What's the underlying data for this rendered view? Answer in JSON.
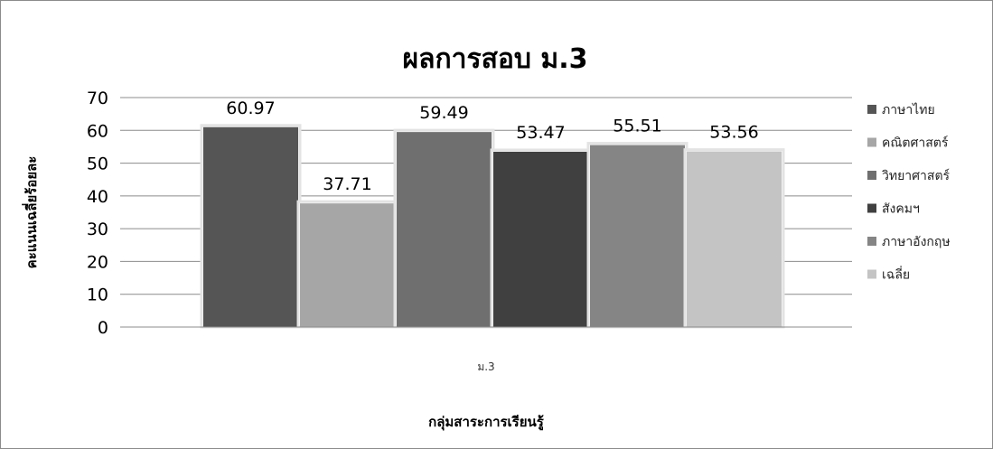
{
  "chart_data": {
    "type": "bar",
    "title": "ผลการสอบ ม.3",
    "xlabel": "กลุ่มสาระการเรียนรู้",
    "ylabel": "คะแนนเฉลี่ยร้อยละ",
    "categories": [
      "ม.3"
    ],
    "ylim": [
      0,
      70
    ],
    "yticks": [
      0,
      10,
      20,
      30,
      40,
      50,
      60,
      70
    ],
    "grid": true,
    "legend_position": "right",
    "series": [
      {
        "name": "ภาษาไทย",
        "values": [
          60.97
        ],
        "label": "60.97",
        "color": "#555555"
      },
      {
        "name": "คณิตศาสตร์",
        "values": [
          37.71
        ],
        "label": "37.71",
        "color": "#a6a6a6"
      },
      {
        "name": "วิทยาศาสตร์",
        "values": [
          59.49
        ],
        "label": "59.49",
        "color": "#6f6f6f"
      },
      {
        "name": "สังคมฯ",
        "values": [
          53.47
        ],
        "label": "53.47",
        "color": "#404040"
      },
      {
        "name": "ภาษาอังกฤษ",
        "values": [
          55.51
        ],
        "label": "55.51",
        "color": "#858585"
      },
      {
        "name": "เฉลี่ย",
        "values": [
          53.56
        ],
        "label": "53.56",
        "color": "#c4c4c4"
      }
    ]
  }
}
